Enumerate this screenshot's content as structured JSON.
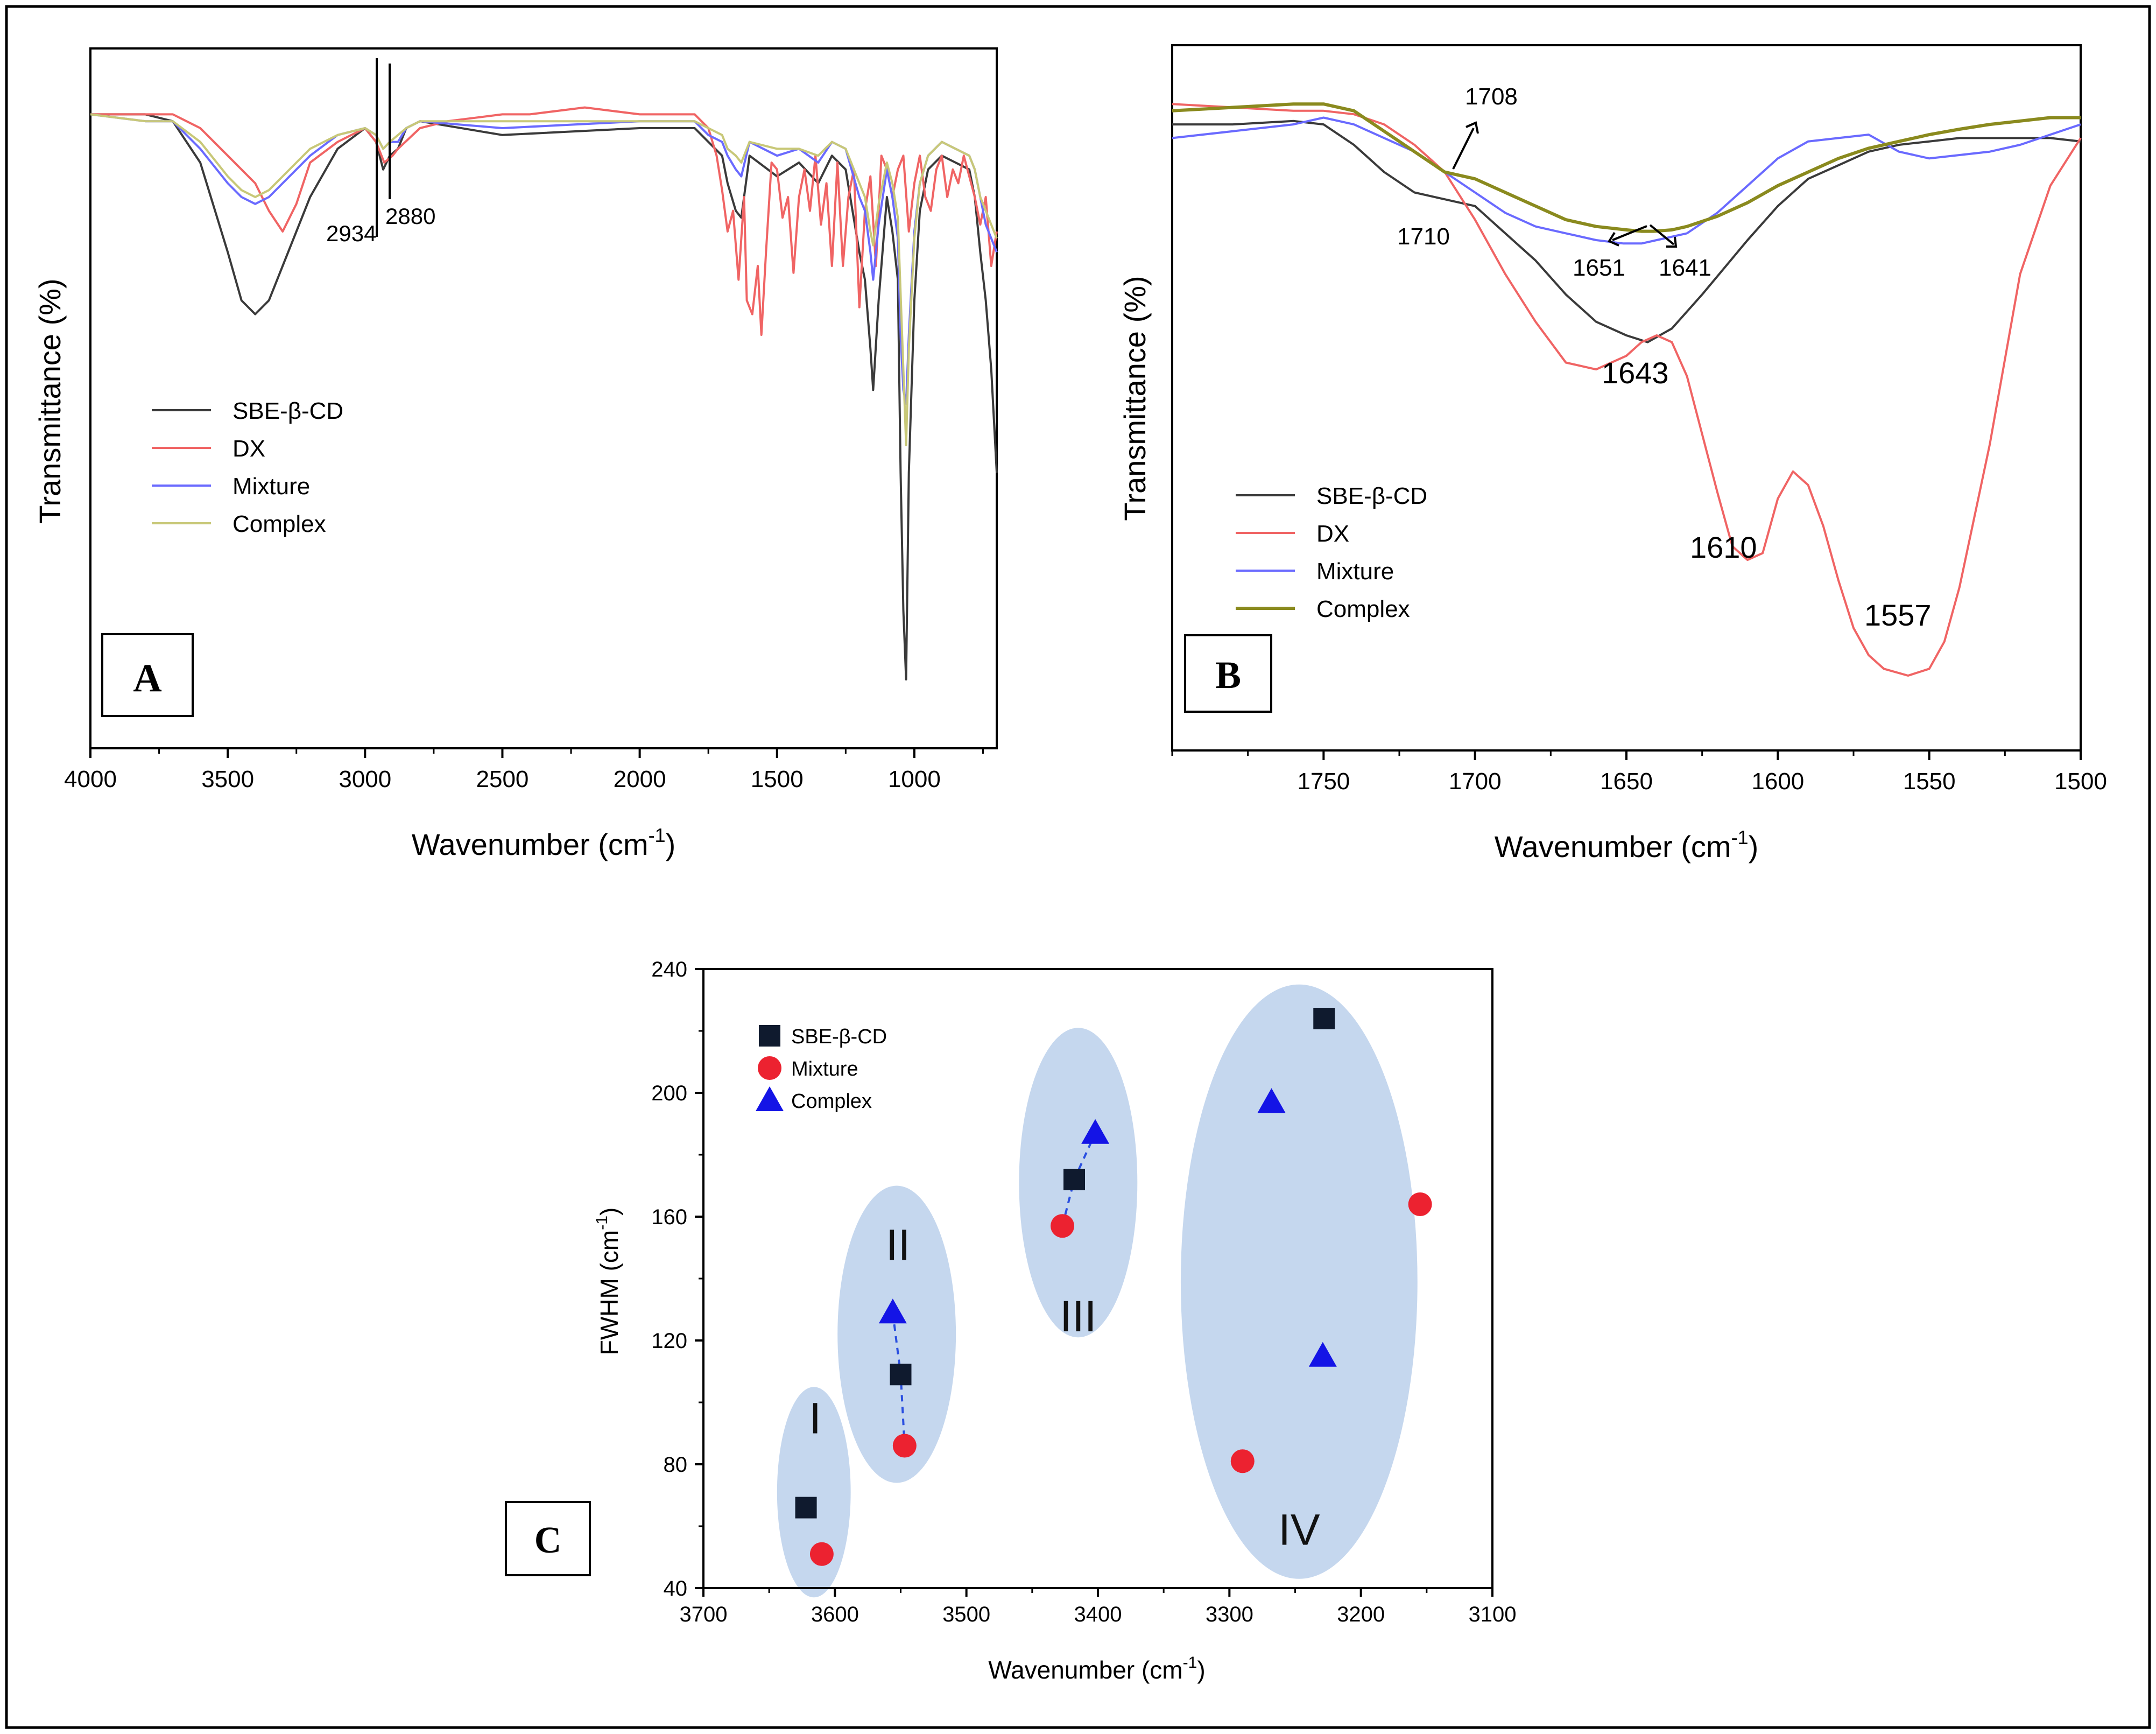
{
  "colors": {
    "SBE-β-CD": "#3a3a3a",
    "DX": "#f06464",
    "Mixture": "#6a6aff",
    "Complex": "#c8c878",
    "ComplexB": "#8a8a1e",
    "markerSBE": "#0f1a2e",
    "markerMix": "#ec2230",
    "markerCom": "#1414e6",
    "ellipse": "#c5d7ee"
  },
  "chart_data": [
    {
      "id": "A",
      "type": "line",
      "panel_label": "A",
      "xlabel": "Wavenumber (cm",
      "xlabel_sup": "-1",
      "xlabel_end": ")",
      "ylabel": "Transmittance (%)",
      "xlim": [
        4000,
        700
      ],
      "ylim": [
        0,
        100
      ],
      "xticks": [
        "4000",
        "3500",
        "3000",
        "2500",
        "2000",
        "1500",
        "1000"
      ],
      "legend": [
        "SBE-β-CD",
        "DX",
        "Mixture",
        "Complex"
      ],
      "annotations": [
        "2934",
        "2880"
      ],
      "series": [
        {
          "name": "SBE-β-CD",
          "x": [
            4000,
            3800,
            3700,
            3600,
            3500,
            3450,
            3400,
            3350,
            3300,
            3200,
            3100,
            3000,
            2960,
            2934,
            2910,
            2880,
            2850,
            2800,
            2500,
            2000,
            1800,
            1750,
            1700,
            1680,
            1650,
            1630,
            1600,
            1500,
            1420,
            1350,
            1300,
            1250,
            1200,
            1180,
            1160,
            1150,
            1130,
            1100,
            1080,
            1060,
            1050,
            1040,
            1030,
            1020,
            1000,
            980,
            950,
            900,
            850,
            800,
            780,
            760,
            740,
            720,
            700
          ],
          "y": [
            92,
            92,
            91,
            85,
            72,
            65,
            63,
            65,
            70,
            80,
            87,
            90,
            88,
            84,
            86,
            87,
            90,
            91,
            89,
            90,
            90,
            88,
            86,
            82,
            78,
            77,
            86,
            83,
            85,
            82,
            86,
            84,
            72,
            68,
            58,
            52,
            65,
            80,
            75,
            68,
            40,
            20,
            10,
            40,
            65,
            78,
            84,
            86,
            85,
            84,
            80,
            72,
            65,
            55,
            40
          ]
        },
        {
          "name": "DX",
          "x": [
            4000,
            3800,
            3700,
            3650,
            3600,
            3500,
            3400,
            3350,
            3300,
            3250,
            3200,
            3100,
            3000,
            2960,
            2930,
            2900,
            2880,
            2800,
            2700,
            2500,
            2400,
            2200,
            2000,
            1800,
            1750,
            1720,
            1700,
            1680,
            1660,
            1640,
            1620,
            1610,
            1590,
            1570,
            1557,
            1540,
            1520,
            1500,
            1480,
            1460,
            1440,
            1420,
            1400,
            1380,
            1360,
            1340,
            1320,
            1300,
            1280,
            1260,
            1240,
            1220,
            1200,
            1180,
            1160,
            1140,
            1120,
            1100,
            1080,
            1060,
            1040,
            1020,
            1000,
            980,
            960,
            940,
            920,
            900,
            880,
            860,
            840,
            820,
            800,
            780,
            760,
            740,
            720,
            700
          ],
          "y": [
            92,
            92,
            92,
            91,
            90,
            86,
            82,
            78,
            75,
            79,
            85,
            88,
            90,
            88,
            85,
            86,
            87,
            90,
            91,
            92,
            92,
            93,
            92,
            92,
            90,
            86,
            81,
            75,
            78,
            68,
            80,
            65,
            63,
            70,
            60,
            72,
            85,
            84,
            77,
            80,
            69,
            80,
            84,
            78,
            86,
            76,
            82,
            70,
            85,
            70,
            80,
            84,
            64,
            78,
            83,
            70,
            86,
            84,
            80,
            84,
            86,
            75,
            82,
            86,
            80,
            78,
            84,
            86,
            80,
            84,
            82,
            86,
            83,
            80,
            76,
            80,
            70,
            75
          ]
        },
        {
          "name": "Mixture",
          "x": [
            4000,
            3800,
            3700,
            3600,
            3500,
            3450,
            3400,
            3350,
            3300,
            3200,
            3100,
            3000,
            2960,
            2934,
            2910,
            2880,
            2850,
            2800,
            2500,
            2000,
            1800,
            1750,
            1700,
            1680,
            1650,
            1630,
            1600,
            1500,
            1420,
            1350,
            1300,
            1250,
            1200,
            1180,
            1160,
            1150,
            1130,
            1100,
            1080,
            1060,
            1050,
            1040,
            1030,
            1020,
            1000,
            980,
            950,
            900,
            850,
            800,
            780,
            760,
            740,
            720,
            700
          ],
          "y": [
            92,
            91,
            91,
            87,
            82,
            80,
            79,
            80,
            82,
            86,
            89,
            90,
            89,
            87,
            88,
            88,
            90,
            91,
            90,
            91,
            91,
            89,
            88,
            86,
            84,
            83,
            88,
            86,
            87,
            85,
            88,
            87,
            80,
            78,
            72,
            68,
            76,
            84,
            80,
            74,
            60,
            52,
            50,
            60,
            75,
            82,
            86,
            88,
            87,
            86,
            84,
            80,
            76,
            74,
            72
          ]
        },
        {
          "name": "Complex",
          "x": [
            4000,
            3800,
            3700,
            3600,
            3500,
            3450,
            3400,
            3350,
            3300,
            3200,
            3100,
            3000,
            2960,
            2934,
            2910,
            2880,
            2850,
            2800,
            2500,
            2000,
            1800,
            1750,
            1700,
            1680,
            1650,
            1630,
            1600,
            1500,
            1420,
            1350,
            1300,
            1250,
            1200,
            1180,
            1160,
            1150,
            1130,
            1100,
            1080,
            1060,
            1050,
            1040,
            1030,
            1020,
            1000,
            980,
            950,
            900,
            850,
            800,
            780,
            760,
            740,
            720,
            700
          ],
          "y": [
            92,
            91,
            91,
            88,
            83,
            81,
            80,
            81,
            83,
            87,
            89,
            90,
            89,
            87,
            88,
            89,
            90,
            91,
            91,
            91,
            91,
            90,
            89,
            87,
            86,
            85,
            88,
            87,
            87,
            86,
            88,
            87,
            82,
            80,
            75,
            73,
            79,
            85,
            82,
            77,
            66,
            55,
            44,
            58,
            74,
            82,
            86,
            88,
            87,
            86,
            84,
            80,
            78,
            76,
            74
          ]
        }
      ]
    },
    {
      "id": "B",
      "type": "line",
      "panel_label": "B",
      "xlabel": "Wavenumber (cm",
      "xlabel_sup": "-1",
      "xlabel_end": ")",
      "ylabel": "Transmittance (%)",
      "xlim": [
        1800,
        1500
      ],
      "ylim": [
        0,
        100
      ],
      "xticks": [
        "1750",
        "1700",
        "1650",
        "1600",
        "1550",
        "1500"
      ],
      "legend": [
        "SBE-β-CD",
        "DX",
        "Mixture",
        "Complex"
      ],
      "annotations": [
        "1708",
        "1710",
        "1651",
        "1641",
        "1643",
        "1610",
        "1557"
      ],
      "series": [
        {
          "name": "SBE-β-CD",
          "x": [
            1800,
            1780,
            1760,
            1750,
            1740,
            1730,
            1720,
            1710,
            1700,
            1690,
            1680,
            1670,
            1660,
            1650,
            1643,
            1635,
            1625,
            1610,
            1600,
            1590,
            1580,
            1570,
            1560,
            1550,
            1540,
            1530,
            1520,
            1510,
            1500
          ],
          "y": [
            92,
            92,
            92.5,
            92,
            89,
            85,
            82,
            81,
            80,
            76,
            72,
            67,
            63,
            61,
            60,
            62,
            67,
            75,
            80,
            84,
            86,
            88,
            89,
            89.5,
            90,
            90,
            90,
            90,
            89.5
          ]
        },
        {
          "name": "DX",
          "x": [
            1800,
            1780,
            1760,
            1750,
            1740,
            1730,
            1720,
            1710,
            1700,
            1690,
            1680,
            1670,
            1660,
            1650,
            1645,
            1640,
            1635,
            1630,
            1620,
            1615,
            1610,
            1605,
            1600,
            1595,
            1590,
            1585,
            1580,
            1575,
            1570,
            1565,
            1557,
            1550,
            1545,
            1540,
            1530,
            1520,
            1510,
            1500
          ],
          "y": [
            95,
            94.5,
            94,
            94,
            93.5,
            92,
            89,
            85,
            78,
            70,
            63,
            57,
            56,
            58,
            60,
            61,
            60,
            55,
            38,
            30,
            28,
            29,
            37,
            41,
            39,
            33,
            25,
            18,
            14,
            12,
            11,
            12,
            16,
            24,
            45,
            70,
            83,
            90
          ]
        },
        {
          "name": "Mixture",
          "x": [
            1800,
            1780,
            1760,
            1750,
            1740,
            1730,
            1720,
            1710,
            1700,
            1690,
            1680,
            1670,
            1660,
            1651,
            1645,
            1640,
            1630,
            1620,
            1610,
            1600,
            1590,
            1580,
            1570,
            1560,
            1550,
            1540,
            1530,
            1520,
            1510,
            1500
          ],
          "y": [
            90,
            91,
            92,
            93,
            92,
            90,
            88,
            85,
            82,
            79,
            77,
            76,
            75,
            74.5,
            74.5,
            75,
            76,
            79,
            83,
            87,
            89.5,
            90,
            90.5,
            88,
            87,
            87.5,
            88,
            89,
            90.5,
            92
          ]
        },
        {
          "name": "Complex",
          "x": [
            1800,
            1780,
            1760,
            1750,
            1740,
            1730,
            1720,
            1710,
            1700,
            1690,
            1680,
            1670,
            1660,
            1650,
            1645,
            1641,
            1635,
            1630,
            1620,
            1610,
            1600,
            1590,
            1580,
            1570,
            1560,
            1550,
            1540,
            1530,
            1520,
            1510,
            1500
          ],
          "y": [
            94,
            94.5,
            95,
            95,
            94,
            91,
            88,
            85,
            84,
            82,
            80,
            78,
            77,
            76.5,
            76.3,
            76.3,
            76.5,
            77,
            78.5,
            80.5,
            83,
            85,
            87,
            88.5,
            89.5,
            90.5,
            91.3,
            92,
            92.5,
            93,
            93
          ]
        }
      ]
    },
    {
      "id": "C",
      "type": "scatter",
      "panel_label": "C",
      "xlabel": "Wavenumber (cm",
      "xlabel_sup": "-1",
      "xlabel_end": ")",
      "ylabel": "FWHM (cm",
      "ylabel_sup": "-1",
      "ylabel_end": ")",
      "xlim": [
        3700,
        3100
      ],
      "ylim": [
        40,
        240
      ],
      "xticks": [
        "3700",
        "3600",
        "3500",
        "3400",
        "3300",
        "3200",
        "3100"
      ],
      "yticks": [
        "40",
        "80",
        "120",
        "160",
        "200",
        "240"
      ],
      "legend": [
        "SBE-β-CD",
        "Mixture",
        "Complex"
      ],
      "groups": [
        {
          "label": "I",
          "cx": 3616,
          "cy": 71,
          "rx": 28,
          "ry": 34
        },
        {
          "label": "II",
          "cx": 3553,
          "cy": 122,
          "rx": 45,
          "ry": 48
        },
        {
          "label": "III",
          "cx": 3415,
          "cy": 171,
          "rx": 45,
          "ry": 50
        },
        {
          "label": "IV",
          "cx": 3247,
          "cy": 139,
          "rx": 90,
          "ry": 96
        }
      ],
      "series": [
        {
          "name": "SBE-β-CD",
          "marker": "square",
          "x": [
            3622,
            3550,
            3418,
            3228
          ],
          "y": [
            66,
            109,
            172,
            224
          ]
        },
        {
          "name": "Mixture",
          "marker": "circle",
          "x": [
            3610,
            3547,
            3427,
            3290,
            3155
          ],
          "y": [
            51,
            86,
            157,
            81,
            164
          ]
        },
        {
          "name": "Complex",
          "marker": "triangle",
          "x": [
            3556,
            3402,
            3268,
            3229
          ],
          "y": [
            129,
            187,
            197,
            115
          ]
        }
      ],
      "dashed_links": [
        {
          "x": [
            3556,
            3550,
            3547
          ],
          "y": [
            129,
            109,
            86
          ]
        },
        {
          "x": [
            3427,
            3418,
            3402
          ],
          "y": [
            157,
            172,
            187
          ]
        }
      ]
    }
  ]
}
